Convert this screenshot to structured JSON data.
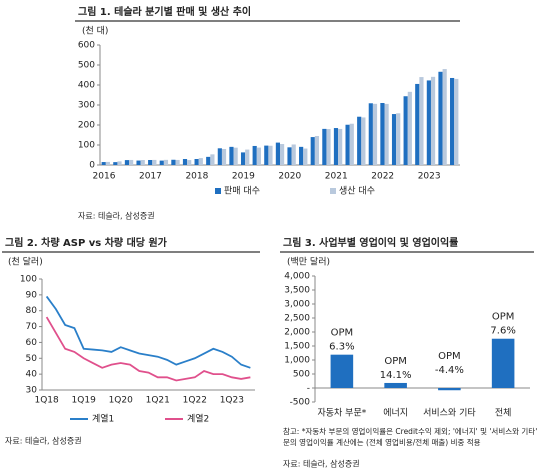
{
  "chart_data": [
    {
      "type": "bar",
      "title": "그림 1. 테슬라 분기별 판매 및 생산 추이",
      "y_label": "(천 대)",
      "categories": [
        "2016",
        null,
        null,
        null,
        "2017",
        null,
        null,
        null,
        "2018",
        null,
        null,
        null,
        "2019",
        null,
        null,
        null,
        "2020",
        null,
        null,
        null,
        "2021",
        null,
        null,
        null,
        "2022",
        null,
        null,
        null,
        "2023",
        null,
        null
      ],
      "series": [
        {
          "name": "판매 대수",
          "color": "#1f6fc0",
          "values": [
            14.8,
            14.4,
            24.5,
            22.2,
            25.0,
            22.0,
            26.2,
            29.9,
            30.0,
            40.7,
            83.5,
            90.7,
            63.0,
            95.2,
            97.0,
            112.0,
            88.4,
            90.7,
            139.6,
            180.6,
            184.8,
            201.3,
            241.4,
            308.6,
            310.0,
            254.7,
            343.8,
            405.3,
            422.9,
            466.1,
            435.1
          ]
        },
        {
          "name": "생산 대수",
          "color": "#b9c9dd",
          "values": [
            15.5,
            18.3,
            25.2,
            24.9,
            25.4,
            25.7,
            25.3,
            24.6,
            34.5,
            53.3,
            80.1,
            86.6,
            77.1,
            87.0,
            96.2,
            104.9,
            102.7,
            82.3,
            145.0,
            179.8,
            180.3,
            206.4,
            237.8,
            305.8,
            305.4,
            258.6,
            365.9,
            439.7,
            440.8,
            479.7,
            430.5
          ]
        }
      ],
      "ylim": [
        0,
        600
      ],
      "yticks": [
        0,
        100,
        200,
        300,
        400,
        500,
        600
      ],
      "grid": false,
      "source": "자료: 테슬라, 삼성증권"
    },
    {
      "type": "line",
      "title": "그림 2. 차량 ASP vs 차량 대당 원가",
      "y_label": "(천 달러)",
      "categories": [
        "1Q18",
        null,
        null,
        null,
        "1Q19",
        null,
        null,
        null,
        "1Q20",
        null,
        null,
        null,
        "1Q21",
        null,
        null,
        null,
        "1Q22",
        null,
        null,
        null,
        "1Q23",
        null,
        null
      ],
      "series": [
        {
          "name": "계열1",
          "color": "#2a7fc9",
          "values": [
            89,
            81,
            71,
            69,
            56,
            55.5,
            55,
            54,
            57,
            55,
            53,
            52,
            51,
            49,
            46,
            48,
            50,
            53,
            56,
            54,
            51,
            46,
            44
          ]
        },
        {
          "name": "계열2",
          "color": "#e0508c",
          "values": [
            76,
            66,
            56,
            54,
            50,
            47,
            44,
            46,
            47,
            46,
            42,
            41,
            38,
            38,
            36,
            37,
            38,
            42,
            40,
            40,
            38,
            37,
            38
          ]
        }
      ],
      "ylim": [
        30,
        100
      ],
      "yticks": [
        30,
        40,
        50,
        60,
        70,
        80,
        90,
        100
      ],
      "grid": false,
      "source": "자료: 테슬라, 삼성증권"
    },
    {
      "type": "bar",
      "title": "그림 3. 사업부별 영업이익 및 영업이익률",
      "y_label": "(백만 달러)",
      "categories": [
        "자동차 부문*",
        "에너지",
        "서비스와 기타",
        "전체"
      ],
      "series": [
        {
          "name": null,
          "color": "#1f6fc0",
          "values": [
            1190,
            180,
            -80,
            1760
          ]
        }
      ],
      "annotations": [
        [
          "OPM",
          "6.3%"
        ],
        [
          "OPM",
          "14.1%"
        ],
        [
          "OPM",
          "-4.4%"
        ],
        [
          "OPM",
          "7.6%"
        ]
      ],
      "ylim": [
        -500,
        4000
      ],
      "yticks": [
        -500,
        {
          "value": 0,
          "label": "-"
        },
        500,
        {
          "value": 1000,
          "label": "1,000"
        },
        {
          "value": 1500,
          "label": "1,500"
        },
        {
          "value": 2000,
          "label": "2,000"
        },
        {
          "value": 2500,
          "label": "2,500"
        },
        {
          "value": 3000,
          "label": "3,000"
        },
        {
          "value": 3500,
          "label": "3,500"
        },
        {
          "value": 4000,
          "label": "4,000"
        }
      ],
      "grid": false,
      "note": [
        "참고: *자동차 부문의 영업이익률은 Credit수익 제외; '에너지' 및 '서비스와 기타' 부문",
        "문의 영업이익률 계산에는 (전체 영업비용/전체 매출) 비중 적용"
      ],
      "source": "자료: 테슬라, 삼성증권"
    }
  ]
}
